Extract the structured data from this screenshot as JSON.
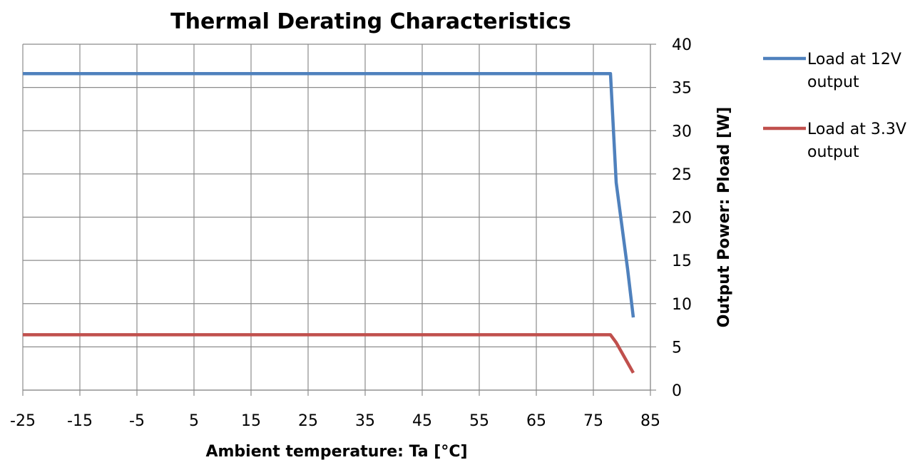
{
  "chart_data": {
    "type": "line",
    "title": "Thermal Derating Characteristics",
    "xlabel": "Ambient temperature: Ta [°C]",
    "ylabel": "Output Power: Pload [W]",
    "xlim": [
      -25,
      85
    ],
    "ylim": [
      0,
      40
    ],
    "x_ticks": [
      -25,
      -15,
      -5,
      5,
      15,
      25,
      35,
      45,
      55,
      65,
      75,
      85
    ],
    "y_ticks": [
      0,
      5,
      10,
      15,
      20,
      25,
      30,
      35,
      40
    ],
    "y_axis_side": "right",
    "grid": true,
    "legend_position": "right",
    "series": [
      {
        "name": "Load at 12V output",
        "legend_lines": [
          "Load at 12V",
          "output"
        ],
        "color": "#4f81bd",
        "x": [
          -25,
          78,
          79,
          81,
          82
        ],
        "y": [
          36.6,
          36.6,
          24,
          14,
          8.4
        ]
      },
      {
        "name": "Load at 3.3V output",
        "legend_lines": [
          "Load at 3.3V",
          "output"
        ],
        "color": "#c0504d",
        "x": [
          -25,
          78,
          79,
          82
        ],
        "y": [
          6.4,
          6.4,
          5.5,
          2
        ]
      }
    ]
  }
}
